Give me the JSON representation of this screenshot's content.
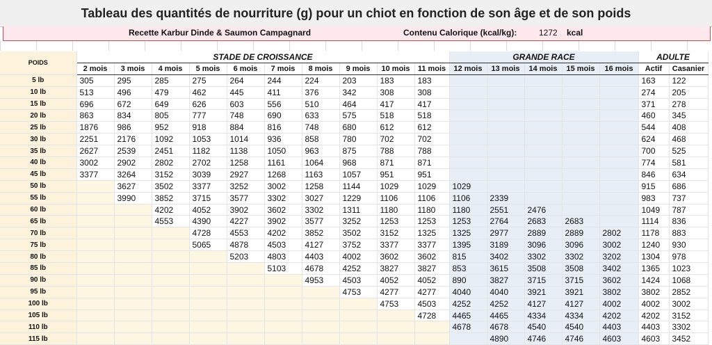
{
  "title": "Tableau des quantités de nourriture (g) pour un chiot en fonction de son âge et de son poids",
  "recipe": "Recette Karbur Dinde & Saumon Campagnard",
  "calorie_label": "Contenu Calorique (kcal/kg):",
  "calorie_value": "1272",
  "calorie_unit": "kcal",
  "groups": {
    "growth": "STADE DE CROISSANCE",
    "large": "GRANDE RACE",
    "adult": "ADULTE"
  },
  "poids_label": "POIDS",
  "columns": [
    "2 mois",
    "3 mois",
    "4 mois",
    "5 mois",
    "6 mois",
    "7 mois",
    "8 mois",
    "9 mois",
    "10 mois",
    "11 mois",
    "12 mois",
    "13 mois",
    "14 mois",
    "15 mois",
    "16 mois",
    "Actif",
    "Casanier"
  ],
  "rows": [
    {
      "w": "5 lb",
      "v": [
        "305",
        "295",
        "285",
        "275",
        "264",
        "244",
        "224",
        "203",
        "183",
        "183",
        "",
        "",
        "",
        "",
        "",
        "163",
        "122"
      ]
    },
    {
      "w": "10 lb",
      "v": [
        "513",
        "496",
        "479",
        "462",
        "445",
        "411",
        "376",
        "342",
        "308",
        "308",
        "",
        "",
        "",
        "",
        "",
        "274",
        "205"
      ]
    },
    {
      "w": "15 lb",
      "v": [
        "696",
        "672",
        "649",
        "626",
        "603",
        "556",
        "510",
        "464",
        "417",
        "417",
        "",
        "",
        "",
        "",
        "",
        "371",
        "278"
      ]
    },
    {
      "w": "20 lb",
      "v": [
        "863",
        "834",
        "805",
        "777",
        "748",
        "690",
        "633",
        "575",
        "518",
        "518",
        "",
        "",
        "",
        "",
        "",
        "460",
        "345"
      ]
    },
    {
      "w": "25 lb",
      "v": [
        "1876",
        "986",
        "952",
        "918",
        "884",
        "816",
        "748",
        "680",
        "612",
        "612",
        "",
        "",
        "",
        "",
        "",
        "544",
        "408"
      ]
    },
    {
      "w": "30 lb",
      "v": [
        "2251",
        "2176",
        "1092",
        "1053",
        "1014",
        "936",
        "858",
        "780",
        "702",
        "702",
        "",
        "",
        "",
        "",
        "",
        "624",
        "468"
      ]
    },
    {
      "w": "35 lb",
      "v": [
        "2627",
        "2539",
        "2451",
        "1182",
        "1138",
        "1050",
        "963",
        "875",
        "788",
        "788",
        "",
        "",
        "",
        "",
        "",
        "700",
        "525"
      ]
    },
    {
      "w": "40 lb",
      "v": [
        "3002",
        "2902",
        "2802",
        "2702",
        "1258",
        "1161",
        "1064",
        "968",
        "871",
        "871",
        "",
        "",
        "",
        "",
        "",
        "774",
        "581"
      ]
    },
    {
      "w": "45 lb",
      "v": [
        "3377",
        "3264",
        "3152",
        "3039",
        "2927",
        "1268",
        "1163",
        "1057",
        "951",
        "951",
        "",
        "",
        "",
        "",
        "",
        "846",
        "634"
      ]
    },
    {
      "w": "50 lb",
      "v": [
        "",
        "3627",
        "3502",
        "3377",
        "3252",
        "3002",
        "1258",
        "1144",
        "1029",
        "1029",
        "1029",
        "",
        "",
        "",
        "",
        "915",
        "686"
      ]
    },
    {
      "w": "55 lb",
      "v": [
        "",
        "3990",
        "3852",
        "3715",
        "3577",
        "3302",
        "3027",
        "1229",
        "1106",
        "1106",
        "1106",
        "2339",
        "",
        "",
        "",
        "983",
        "737"
      ]
    },
    {
      "w": "60 lb",
      "v": [
        "",
        "",
        "4202",
        "4052",
        "3902",
        "3602",
        "3302",
        "1311",
        "1180",
        "1180",
        "1180",
        "2551",
        "2476",
        "",
        "",
        "1049",
        "787"
      ]
    },
    {
      "w": "65 lb",
      "v": [
        "",
        "",
        "4553",
        "4390",
        "4227",
        "3902",
        "3577",
        "3252",
        "1253",
        "1253",
        "1253",
        "2764",
        "2683",
        "2683",
        "",
        "1114",
        "836"
      ]
    },
    {
      "w": "70 lb",
      "v": [
        "",
        "",
        "",
        "4728",
        "4553",
        "4202",
        "3852",
        "3502",
        "3152",
        "1325",
        "1325",
        "2977",
        "2889",
        "2889",
        "2802",
        "1178",
        "883"
      ]
    },
    {
      "w": "75 lb",
      "v": [
        "",
        "",
        "",
        "5065",
        "4878",
        "4503",
        "4127",
        "3752",
        "3377",
        "3377",
        "1395",
        "3189",
        "3096",
        "3096",
        "3002",
        "1240",
        "930"
      ]
    },
    {
      "w": "80 lb",
      "v": [
        "",
        "",
        "",
        "",
        "5203",
        "4803",
        "4403",
        "4002",
        "3602",
        "3602",
        "815",
        "3402",
        "3302",
        "3302",
        "3202",
        "1304",
        "978"
      ]
    },
    {
      "w": "85 lb",
      "v": [
        "",
        "",
        "",
        "",
        "",
        "5103",
        "4678",
        "4252",
        "3827",
        "3827",
        "853",
        "3615",
        "3508",
        "3508",
        "3402",
        "1365",
        "1023"
      ]
    },
    {
      "w": "90 lb",
      "v": [
        "",
        "",
        "",
        "",
        "",
        "",
        "4953",
        "4503",
        "4052",
        "4052",
        "890",
        "3827",
        "3715",
        "3715",
        "3602",
        "1424",
        "1068"
      ]
    },
    {
      "w": "95 lb",
      "v": [
        "",
        "",
        "",
        "",
        "",
        "",
        "",
        "4753",
        "4277",
        "4277",
        "4040",
        "4040",
        "3921",
        "3921",
        "3802",
        "3802",
        "2852"
      ]
    },
    {
      "w": "100 lb",
      "v": [
        "",
        "",
        "",
        "",
        "",
        "",
        "",
        "",
        "4753",
        "4503",
        "4252",
        "4252",
        "4127",
        "4127",
        "4002",
        "4002",
        "3002"
      ]
    },
    {
      "w": "105 lb",
      "v": [
        "",
        "",
        "",
        "",
        "",
        "",
        "",
        "",
        "",
        "4728",
        "4465",
        "4465",
        "4334",
        "4334",
        "4202",
        "4202",
        "3152"
      ]
    },
    {
      "w": "110 lb",
      "v": [
        "",
        "",
        "",
        "",
        "",
        "",
        "",
        "",
        "",
        "",
        "4678",
        "4678",
        "4540",
        "4540",
        "4403",
        "4403",
        "3302"
      ]
    },
    {
      "w": "115 lb",
      "v": [
        "",
        "",
        "",
        "",
        "",
        "",
        "",
        "",
        "",
        "",
        "",
        "4890",
        "4746",
        "4746",
        "4603",
        "4603",
        "3452"
      ]
    }
  ]
}
